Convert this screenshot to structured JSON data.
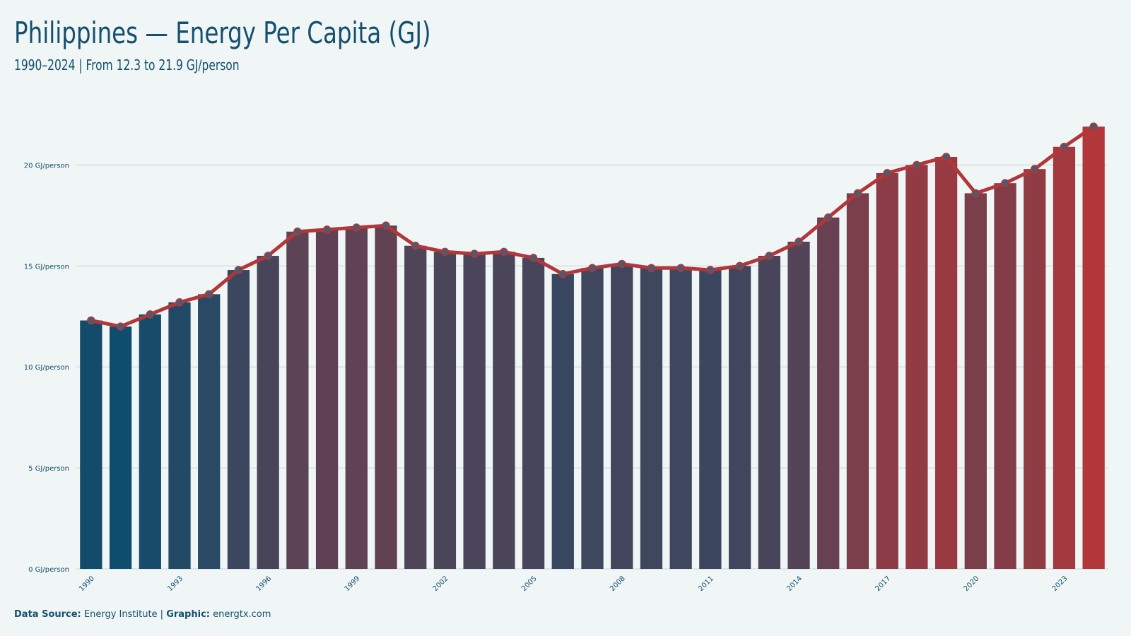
{
  "header": {
    "title": "Philippines — Energy Per Capita (GJ)",
    "subtitle": "1990–2024 | From 12.3 to 21.9 GJ/person"
  },
  "footer": {
    "source_label": "Data Source:",
    "source_value": "Energy Institute |",
    "graphic_label": "Graphic:",
    "graphic_value": "energtx.com"
  },
  "colors": {
    "background": "#f0f6f6",
    "text": "#15506e",
    "line": "#b2373a",
    "marker": "#4f5a70",
    "bar_low": "#0e4d6d",
    "bar_high": "#b2373a",
    "grid": "#d6e0e2"
  },
  "chart_data": {
    "type": "bar",
    "title": "Philippines — Energy Per Capita (GJ)",
    "subtitle": "1990–2024 | From 12.3 to 21.9 GJ/person",
    "xlabel": "",
    "ylabel": "",
    "ylim": [
      0,
      22.5
    ],
    "y_ticks": [
      0,
      5,
      10,
      15,
      20
    ],
    "y_tick_suffix": " GJ/person",
    "x_tick_labels": [
      "1990",
      "1993",
      "1996",
      "1999",
      "2002",
      "2005",
      "2008",
      "2011",
      "2014",
      "2017",
      "2020",
      "2023"
    ],
    "grid": true,
    "legend": "none",
    "overlay": "line with markers over the same values",
    "categories": [
      "1990",
      "1991",
      "1992",
      "1993",
      "1994",
      "1995",
      "1996",
      "1997",
      "1998",
      "1999",
      "2000",
      "2001",
      "2002",
      "2003",
      "2004",
      "2005",
      "2006",
      "2007",
      "2008",
      "2009",
      "2010",
      "2011",
      "2012",
      "2013",
      "2014",
      "2015",
      "2016",
      "2017",
      "2018",
      "2019",
      "2020",
      "2021",
      "2022",
      "2023",
      "2024"
    ],
    "values": [
      12.3,
      12.0,
      12.6,
      13.2,
      13.6,
      14.8,
      15.5,
      16.7,
      16.8,
      16.9,
      17.0,
      16.0,
      15.7,
      15.6,
      15.7,
      15.4,
      14.6,
      14.9,
      15.1,
      14.9,
      14.9,
      14.8,
      15.0,
      15.5,
      16.2,
      17.4,
      18.6,
      19.6,
      20.0,
      20.4,
      18.6,
      19.1,
      19.8,
      20.9,
      21.9
    ]
  }
}
